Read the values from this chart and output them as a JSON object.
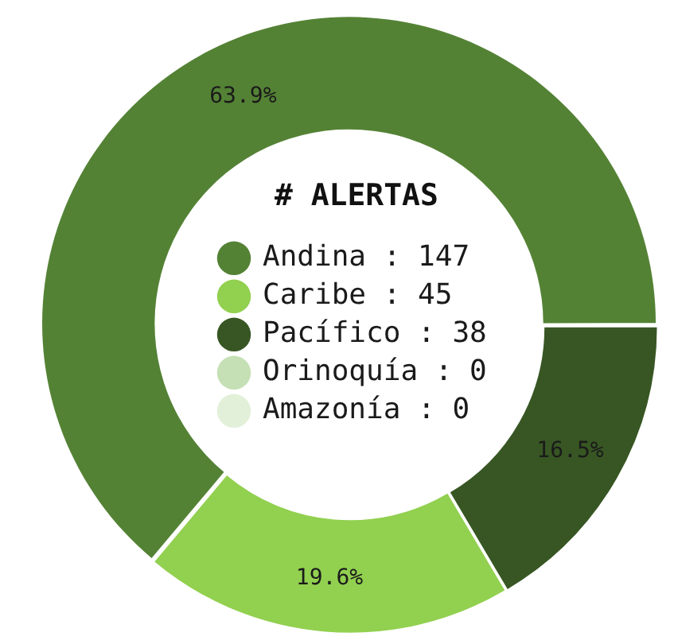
{
  "chart_data": {
    "type": "donut",
    "legend_title": "# ALERTAS",
    "legend": "center",
    "categories": [
      "Andina : 147",
      "Caribe : 45",
      "Pacífico : 38",
      "Orinoquía : 0",
      "Amazonía : 0"
    ],
    "values": [
      63.9,
      19.6,
      16.5,
      0,
      0
    ],
    "colors": [
      "#548235",
      "#92d050",
      "#375623",
      "#c5e0b4",
      "#e2f0d9"
    ],
    "value_labels": [
      "63.9%",
      "19.6%",
      "16.5%",
      null,
      null
    ]
  }
}
